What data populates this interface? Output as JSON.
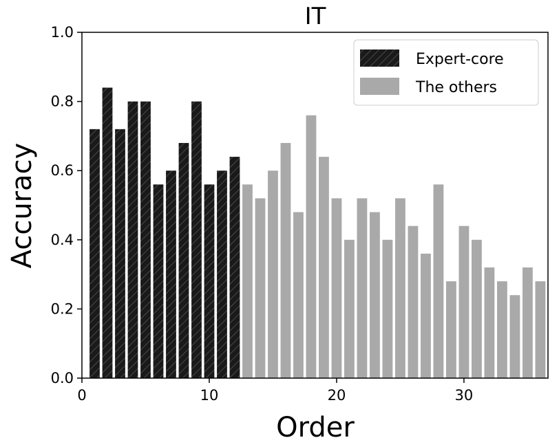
{
  "chart_data": {
    "type": "bar",
    "title": "IT",
    "xlabel": "Order",
    "ylabel": "Accuracy",
    "xlim": [
      0,
      36.6
    ],
    "ylim": [
      0,
      1.0
    ],
    "xticks": [
      0,
      10,
      20,
      30
    ],
    "yticks": [
      0.0,
      0.2,
      0.4,
      0.6,
      0.8,
      1.0
    ],
    "xtick_labels": [
      "0",
      "10",
      "20",
      "30"
    ],
    "ytick_labels": [
      "0.0",
      "0.2",
      "0.4",
      "0.6",
      "0.8",
      "1.0"
    ],
    "grid": false,
    "legend_position": "top-right",
    "series": [
      {
        "name": "Expert-core",
        "color": "#1a1a1a",
        "pattern": "hatch",
        "x": [
          1,
          2,
          3,
          4,
          5,
          6,
          7,
          8,
          9,
          10,
          11,
          12
        ],
        "values": [
          0.72,
          0.84,
          0.72,
          0.8,
          0.8,
          0.56,
          0.6,
          0.68,
          0.8,
          0.56,
          0.6,
          0.64
        ]
      },
      {
        "name": "The others",
        "color": "#a9a9a9",
        "x": [
          13,
          14,
          15,
          16,
          17,
          18,
          19,
          20,
          21,
          22,
          23,
          24,
          25,
          26,
          27,
          28,
          29,
          30,
          31,
          32,
          33,
          34,
          35,
          36
        ],
        "values": [
          0.56,
          0.52,
          0.6,
          0.68,
          0.48,
          0.76,
          0.64,
          0.52,
          0.4,
          0.52,
          0.48,
          0.4,
          0.52,
          0.44,
          0.36,
          0.56,
          0.28,
          0.44,
          0.4,
          0.32,
          0.28,
          0.24,
          0.32,
          0.28
        ]
      }
    ]
  }
}
